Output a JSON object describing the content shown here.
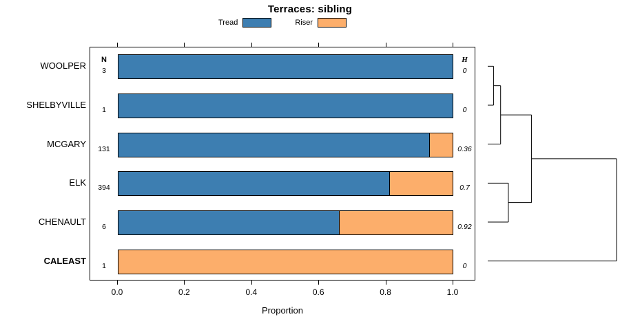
{
  "title": "Terraces: sibling",
  "legend": [
    {
      "label": "Tread",
      "color": "#3d7eb1"
    },
    {
      "label": "Riser",
      "color": "#fcae6b"
    }
  ],
  "col_headers": {
    "n": "N",
    "h": "H"
  },
  "xlabel": "Proportion",
  "x_ticks": [
    "0.0",
    "0.2",
    "0.4",
    "0.6",
    "0.8",
    "1.0"
  ],
  "chart_data": {
    "type": "bar",
    "orientation": "horizontal",
    "stacked": true,
    "title": "Terraces: sibling",
    "xlabel": "Proportion",
    "xlim": [
      0,
      1
    ],
    "categories": [
      "WOOLPER",
      "SHELBYVILLE",
      "MCGARY",
      "ELK",
      "CHENAULT",
      "CALEAST"
    ],
    "bold_categories": [
      "CALEAST"
    ],
    "series": [
      {
        "name": "Tread",
        "color": "#3d7eb1",
        "values": [
          1.0,
          1.0,
          0.93,
          0.81,
          0.66,
          0.0
        ]
      },
      {
        "name": "Riser",
        "color": "#fcae6b",
        "values": [
          0.0,
          0.0,
          0.07,
          0.19,
          0.34,
          1.0
        ]
      }
    ],
    "n_values": [
      "3",
      "1",
      "131",
      "394",
      "6",
      "1"
    ],
    "h_values": [
      "0",
      "0",
      "0.36",
      "0.7",
      "0.92",
      "0"
    ],
    "dendrogram": {
      "merges": [
        {
          "children": [
            "leaf0",
            "leaf1"
          ],
          "height": 0.045
        },
        {
          "children": [
            "m0",
            "leaf2"
          ],
          "height": 0.1
        },
        {
          "children": [
            "leaf3",
            "leaf4"
          ],
          "height": 0.16
        },
        {
          "children": [
            "m1",
            "m2"
          ],
          "height": 0.34
        },
        {
          "children": [
            "m3",
            "leaf5"
          ],
          "height": 1.0
        }
      ]
    }
  }
}
